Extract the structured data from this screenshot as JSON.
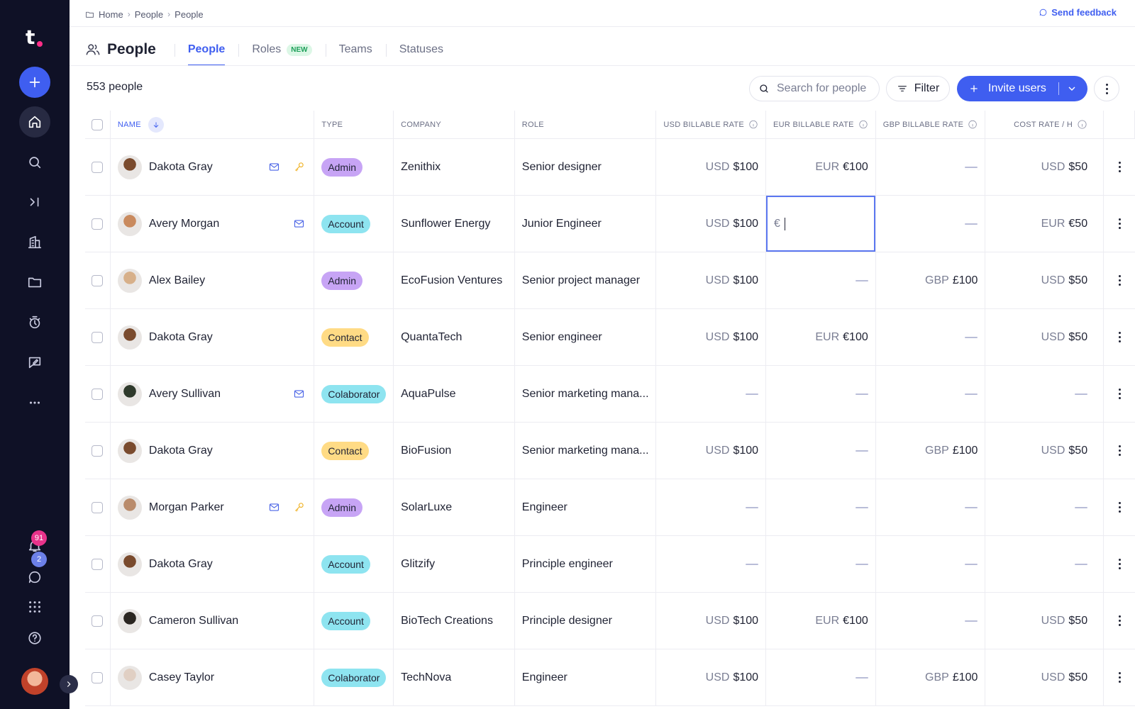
{
  "breadcrumb": [
    "Home",
    "People",
    "People"
  ],
  "feedback_label": "Send feedback",
  "page_title": "People",
  "tabs": [
    {
      "label": "People",
      "active": true
    },
    {
      "label": "Roles",
      "badge": "NEW"
    },
    {
      "label": "Teams"
    },
    {
      "label": "Statuses"
    }
  ],
  "count_label": "553 people",
  "search": {
    "placeholder": "Search for people"
  },
  "filter_label": "Filter",
  "invite_label": "Invite users",
  "notifications": {
    "bell_count": "91",
    "chat_count": "2"
  },
  "columns": {
    "name": "NAME",
    "type": "TYPE",
    "company": "COMPANY",
    "role": "ROLE",
    "usd": "USD BILLABLE RATE",
    "eur": "EUR BILLABLE RATE",
    "gbp": "GBP BILLABLE RATE",
    "cost": "COST RATE / H"
  },
  "editing_input": {
    "prefix": "€"
  },
  "rows": [
    {
      "name": "Dakota Gray",
      "icons": [
        "mail",
        "key"
      ],
      "type": "Admin",
      "company": "Zenithix",
      "role": "Senior designer",
      "usd": [
        "USD",
        "$100"
      ],
      "eur": [
        "EUR",
        "€100"
      ],
      "gbp": null,
      "cost": [
        "USD",
        "$50"
      ],
      "avatar": "#7a4b2e"
    },
    {
      "name": "Avery Morgan",
      "icons": [
        "mail"
      ],
      "type": "Account",
      "company": "Sunflower Energy",
      "role": "Junior Engineer",
      "usd": [
        "USD",
        "$100"
      ],
      "eur": "editing",
      "gbp": null,
      "cost": [
        "EUR",
        "€50"
      ],
      "avatar": "#c98a5e"
    },
    {
      "name": "Alex Bailey",
      "icons": [],
      "type": "Admin",
      "company": "EcoFusion Ventures",
      "role": "Senior project manager",
      "usd": [
        "USD",
        "$100"
      ],
      "eur": null,
      "gbp": [
        "GBP",
        "£100"
      ],
      "cost": [
        "USD",
        "$50"
      ],
      "avatar": "#d7b08a"
    },
    {
      "name": "Dakota Gray",
      "icons": [],
      "type": "Contact",
      "company": "QuantaTech",
      "role": "Senior engineer",
      "usd": [
        "USD",
        "$100"
      ],
      "eur": [
        "EUR",
        "€100"
      ],
      "gbp": null,
      "cost": [
        "USD",
        "$50"
      ],
      "avatar": "#7a4b2e"
    },
    {
      "name": "Avery Sullivan",
      "icons": [
        "mail"
      ],
      "type": "Colaborator",
      "company": "AquaPulse",
      "role": "Senior marketing mana...",
      "usd": null,
      "eur": null,
      "gbp": null,
      "cost": null,
      "avatar": "#2f3a2c"
    },
    {
      "name": "Dakota Gray",
      "icons": [],
      "type": "Contact",
      "company": "BioFusion",
      "role": "Senior marketing mana...",
      "usd": [
        "USD",
        "$100"
      ],
      "eur": null,
      "gbp": [
        "GBP",
        "£100"
      ],
      "cost": [
        "USD",
        "$50"
      ],
      "avatar": "#7a4b2e"
    },
    {
      "name": "Morgan Parker",
      "icons": [
        "mail",
        "key"
      ],
      "type": "Admin",
      "company": "SolarLuxe",
      "role": "Engineer",
      "usd": null,
      "eur": null,
      "gbp": null,
      "cost": null,
      "avatar": "#b98b6b"
    },
    {
      "name": "Dakota Gray",
      "icons": [],
      "type": "Account",
      "company": "Glitzify",
      "role": "Principle engineer",
      "usd": null,
      "eur": null,
      "gbp": null,
      "cost": null,
      "avatar": "#7a4b2e"
    },
    {
      "name": "Cameron Sullivan",
      "icons": [],
      "type": "Account",
      "company": "BioTech Creations",
      "role": "Principle designer",
      "usd": [
        "USD",
        "$100"
      ],
      "eur": [
        "EUR",
        "€100"
      ],
      "gbp": null,
      "cost": [
        "USD",
        "$50"
      ],
      "avatar": "#2b2621"
    },
    {
      "name": "Casey Taylor",
      "icons": [],
      "type": "Colaborator",
      "company": "TechNova",
      "role": "Engineer",
      "usd": [
        "USD",
        "$100"
      ],
      "eur": null,
      "gbp": [
        "GBP",
        "£100"
      ],
      "cost": [
        "USD",
        "$50"
      ],
      "avatar": "#e0cfc3"
    }
  ],
  "icons": {
    "sidebar": [
      "add-icon",
      "home-icon",
      "search-icon",
      "collapse-icon",
      "building-icon",
      "folder-icon",
      "timer-icon",
      "feedback-edit-icon",
      "more-icon",
      "bell-icon",
      "chat-icon",
      "apps-grid-icon",
      "help-icon"
    ]
  },
  "colors": {
    "accent": "#3f5ef0",
    "sidebar": "#0f1126",
    "admin": "#c7a4f5",
    "account": "#8ee4f0",
    "contact": "#ffdb85"
  }
}
